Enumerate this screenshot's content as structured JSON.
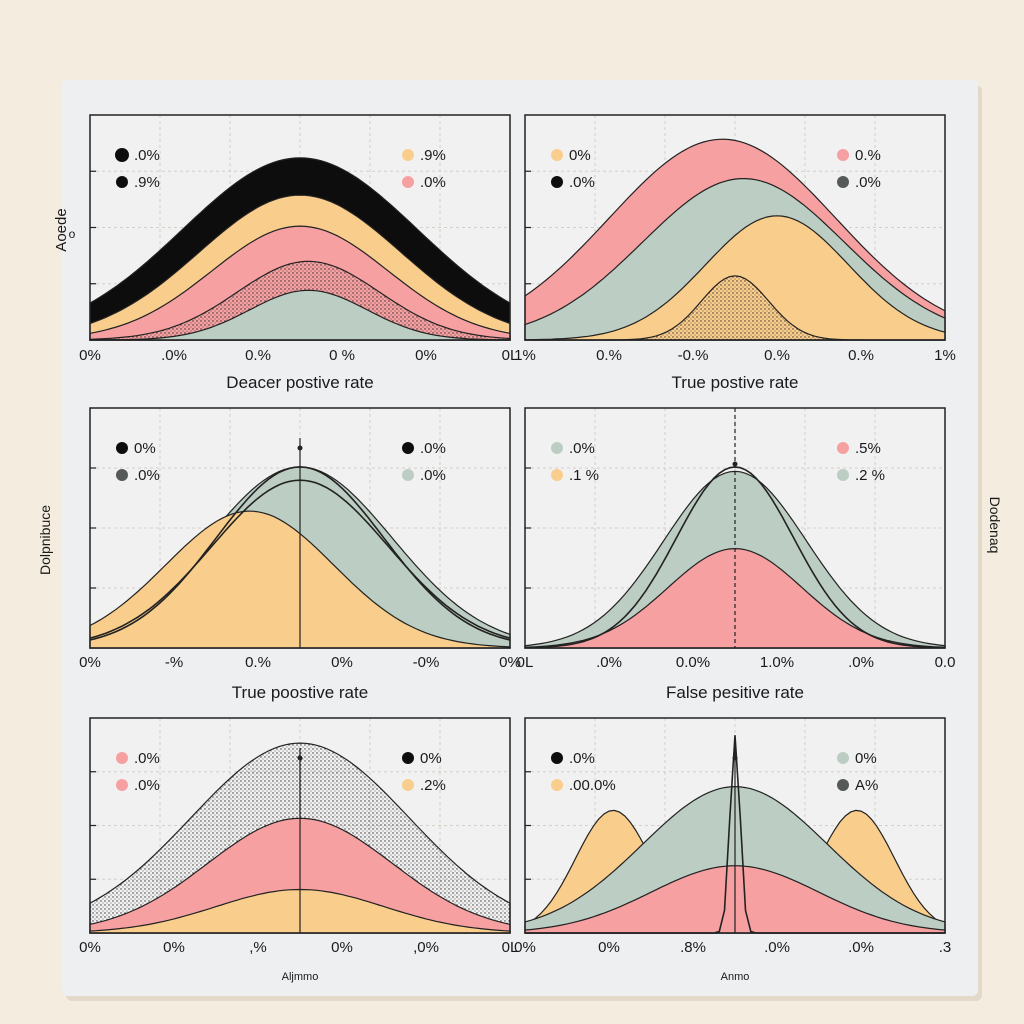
{
  "colors": {
    "black": "#0d0d0d",
    "peach": "#f9cd8c",
    "pink": "#f6a0a2",
    "sage": "#bccdc3",
    "axis": "#222222",
    "grid": "#d4d0c8",
    "dark_gray": "#555a58"
  },
  "page": {
    "ylabel_left_top": "Aoede",
    "ylabel_left_top_sub": "o",
    "ylabel_left_mid": "Dolpnibuce",
    "ylabel_right_mid": "Dodenaq"
  },
  "chart_data": [
    {
      "id": "p1",
      "type": "area",
      "title": "",
      "xlabel": "Deacer postive rate",
      "ylabel": "",
      "xticks": [
        "0%",
        ".0%",
        "0.%",
        "0 %",
        "0%",
        "0L"
      ],
      "legend": [
        {
          "label": ".0%",
          "color": "black",
          "position": "top-left"
        },
        {
          "label": ".9%",
          "color": "black",
          "position": "top-left"
        },
        {
          "label": ".9%",
          "color": "peach",
          "position": "top-right"
        },
        {
          "label": ".0%",
          "color": "pink",
          "position": "top-right"
        }
      ],
      "series": [
        {
          "name": "black",
          "color": "black",
          "peak": 0.88,
          "width": 0.28,
          "center": 0.5
        },
        {
          "name": "peach",
          "color": "peach",
          "peak": 0.7,
          "width": 0.24,
          "center": 0.5
        },
        {
          "name": "pink",
          "color": "pink",
          "peak": 0.55,
          "width": 0.21,
          "center": 0.5
        },
        {
          "name": "stipple",
          "color": "dark_gray",
          "peak": 0.38,
          "width": 0.17,
          "center": 0.52
        },
        {
          "name": "sage",
          "color": "sage",
          "peak": 0.24,
          "width": 0.14,
          "center": 0.52
        }
      ]
    },
    {
      "id": "p2",
      "type": "area",
      "title": "",
      "xlabel": "True postive rate",
      "ylabel": "",
      "xticks": [
        "1%",
        "0.%",
        "-0.%",
        "0.%",
        "0.%",
        "1%"
      ],
      "legend": [
        {
          "label": "0%",
          "color": "peach",
          "position": "top-left"
        },
        {
          "label": ".0%",
          "color": "black",
          "position": "top-left"
        },
        {
          "label": "0.%",
          "color": "pink",
          "position": "top-right"
        },
        {
          "label": ".0%",
          "color": "dark_gray",
          "position": "top-right"
        }
      ],
      "series": [
        {
          "name": "pink",
          "color": "pink",
          "peak": 0.97,
          "width": 0.27,
          "center": 0.47
        },
        {
          "name": "sage",
          "color": "sage",
          "peak": 0.78,
          "width": 0.24,
          "center": 0.52
        },
        {
          "name": "peach",
          "color": "peach",
          "peak": 0.6,
          "width": 0.17,
          "center": 0.6
        },
        {
          "name": "stipple",
          "color": "dark_gray",
          "peak": 0.31,
          "width": 0.08,
          "center": 0.5
        }
      ]
    },
    {
      "id": "p3",
      "type": "area",
      "title": "",
      "xlabel": "True poostive rate",
      "ylabel": "",
      "xticks": [
        "0%",
        "-%",
        "0.%",
        "0%",
        "-0%",
        "0%"
      ],
      "legend": [
        {
          "label": "0%",
          "color": "black",
          "position": "top-left"
        },
        {
          "label": ".0%",
          "color": "dark_gray",
          "position": "top-left"
        },
        {
          "label": ".0%",
          "color": "black",
          "position": "top-right"
        },
        {
          "label": ".0%",
          "color": "sage",
          "position": "top-right"
        }
      ],
      "series": [
        {
          "name": "sage",
          "color": "sage",
          "peak": 0.82,
          "width": 0.22,
          "center": 0.5
        },
        {
          "name": "peach",
          "color": "peach",
          "peak": 0.62,
          "width": 0.2,
          "center": 0.38
        },
        {
          "name": "line1",
          "color": "black",
          "peak": 0.82,
          "width": 0.2,
          "center": 0.5
        },
        {
          "name": "line2",
          "color": "black",
          "peak": 0.76,
          "width": 0.21,
          "center": 0.5
        }
      ]
    },
    {
      "id": "p4",
      "type": "area",
      "title": "",
      "xlabel": "False pesitive rate",
      "ylabel": "",
      "xticks": [
        "0L",
        ".0%",
        "0.0%",
        "1.0%",
        ".0%",
        "0.0"
      ],
      "legend": [
        {
          "label": ".0%",
          "color": "sage",
          "position": "top-left"
        },
        {
          "label": ".1 %",
          "color": "peach",
          "position": "top-left"
        },
        {
          "label": ".5%",
          "color": "pink",
          "position": "top-right"
        },
        {
          "label": ".2 %",
          "color": "sage",
          "position": "top-right"
        }
      ],
      "series": [
        {
          "name": "sage",
          "color": "sage",
          "peak": 0.8,
          "width": 0.17,
          "center": 0.5
        },
        {
          "name": "pink",
          "color": "pink",
          "peak": 0.45,
          "width": 0.16,
          "center": 0.5
        },
        {
          "name": "line",
          "color": "black",
          "peak": 0.82,
          "width": 0.14,
          "center": 0.5
        }
      ]
    },
    {
      "id": "p5",
      "type": "area",
      "title": "",
      "xlabel": "Aljmmo",
      "ylabel": "",
      "xticks": [
        "0%",
        "0%",
        ",%",
        "0%",
        ",0%",
        "0L"
      ],
      "legend": [
        {
          "label": ".0%",
          "color": "pink",
          "position": "top-left"
        },
        {
          "label": ".0%",
          "color": "pink",
          "position": "top-left"
        },
        {
          "label": "0%",
          "color": "black",
          "position": "top-right"
        },
        {
          "label": ".2%",
          "color": "peach",
          "position": "top-right"
        }
      ],
      "series": [
        {
          "name": "stipple",
          "color": "dark_gray",
          "peak": 0.96,
          "width": 0.26,
          "center": 0.5
        },
        {
          "name": "pink",
          "color": "pink",
          "peak": 0.58,
          "width": 0.22,
          "center": 0.5
        },
        {
          "name": "peach",
          "color": "peach",
          "peak": 0.22,
          "width": 0.2,
          "center": 0.5
        }
      ]
    },
    {
      "id": "p6",
      "type": "area",
      "title": "",
      "xlabel": "Anmo",
      "ylabel": "",
      "xticks": [
        "0%",
        "0%",
        ".8%",
        ".0%",
        ".0%",
        ".3"
      ],
      "legend": [
        {
          "label": ".0%",
          "color": "black",
          "position": "top-left"
        },
        {
          "label": ".00.0%",
          "color": "peach",
          "position": "top-left"
        },
        {
          "label": "0%",
          "color": "sage",
          "position": "top-right"
        },
        {
          "label": "A%",
          "color": "dark_gray",
          "position": "top-right"
        }
      ],
      "series": [
        {
          "name": "peach_left",
          "color": "peach",
          "peak": 0.62,
          "width": 0.09,
          "center": 0.21
        },
        {
          "name": "peach_right",
          "color": "peach",
          "peak": 0.62,
          "width": 0.09,
          "center": 0.79
        },
        {
          "name": "sage",
          "color": "sage",
          "peak": 0.74,
          "width": 0.22,
          "center": 0.5
        },
        {
          "name": "pink",
          "color": "pink",
          "peak": 0.34,
          "width": 0.2,
          "center": 0.5
        },
        {
          "name": "spike",
          "color": "black",
          "peak": 1.0,
          "width": 0.012,
          "center": 0.5
        }
      ]
    }
  ]
}
